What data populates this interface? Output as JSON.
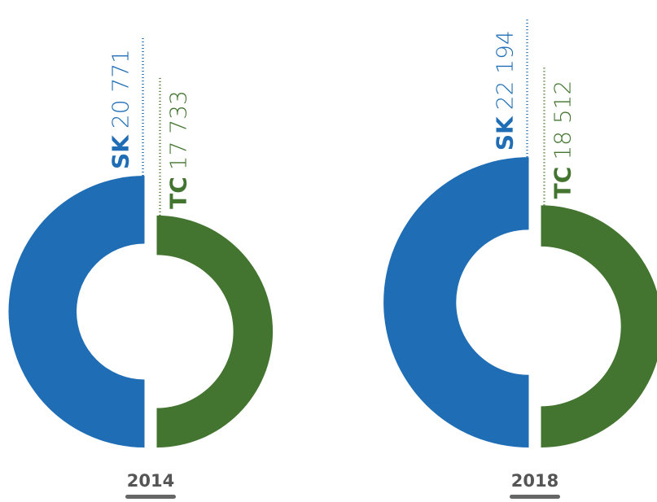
{
  "chart_data": [
    {
      "type": "split-donut",
      "title": "2014",
      "categories": [
        "SK",
        "TC"
      ],
      "values": [
        20771,
        17733
      ],
      "value_labels": [
        "20 771",
        "17 733"
      ],
      "colors": [
        "#1f6db5",
        "#437530"
      ]
    },
    {
      "type": "split-donut",
      "title": "2018",
      "categories": [
        "SK",
        "TC"
      ],
      "values": [
        22194,
        18512
      ],
      "value_labels": [
        "22 194",
        "18 512"
      ],
      "colors": [
        "#1f6db5",
        "#437530"
      ]
    }
  ]
}
